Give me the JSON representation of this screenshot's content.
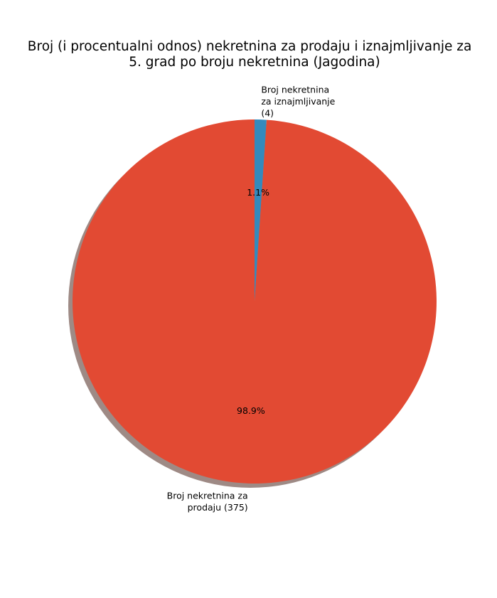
{
  "chart_data": {
    "type": "pie",
    "title_lines": [
      "Broj (i procentualni odnos) nekretnina za prodaju i iznajmljivanje za",
      "5. grad po broju nekretnina (Jagodina)"
    ],
    "slices": [
      {
        "label_lines": [
          "Broj nekretnina",
          "za iznajmljivanje",
          "(4)"
        ],
        "value": 4,
        "pct_label": "1.1%",
        "color": "#348abd"
      },
      {
        "label_lines": [
          "Broj nekretnina za",
          "prodaju (375)"
        ],
        "value": 375,
        "pct_label": "98.9%",
        "color": "#e24a33"
      }
    ],
    "start_angle_deg": 90,
    "direction": "clockwise",
    "shadow": true,
    "shadow_color": "#9e8a85"
  }
}
